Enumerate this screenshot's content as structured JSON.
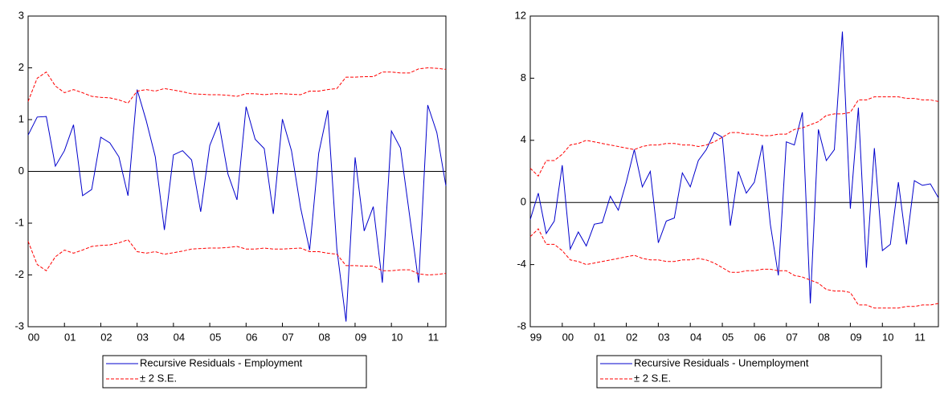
{
  "chart_data": [
    {
      "type": "line",
      "categories": [
        "00",
        null,
        null,
        null,
        "01",
        null,
        null,
        null,
        "02",
        null,
        null,
        null,
        "03",
        null,
        null,
        null,
        "04",
        null,
        null,
        null,
        "05",
        null,
        null,
        null,
        "06",
        null,
        null,
        null,
        "07",
        null,
        null,
        null,
        "08",
        null,
        null,
        null,
        "09",
        null,
        null,
        null,
        "10",
        null,
        null,
        null,
        "11",
        null,
        null
      ],
      "series": [
        {
          "name": "Recursive Residuals - Employment",
          "color": "#0000cc",
          "dash": false,
          "values": [
            0.7,
            1.05,
            1.06,
            0.1,
            0.4,
            0.9,
            -0.47,
            -0.35,
            0.66,
            0.55,
            0.28,
            -0.47,
            1.58,
            0.98,
            0.28,
            -1.13,
            0.32,
            0.4,
            0.22,
            -0.78,
            0.5,
            0.94,
            -0.05,
            -0.55,
            1.25,
            0.62,
            0.44,
            -0.82,
            1.01,
            0.4,
            -0.7,
            -1.52,
            0.35,
            1.18,
            -1.5,
            -2.9,
            0.27,
            -1.15,
            -0.68,
            -2.15,
            0.78,
            0.45,
            -0.85,
            -2.15,
            1.28,
            0.75,
            -0.28
          ]
        },
        {
          "name": "± 2 S.E.",
          "color": "#ff0000",
          "dash": true,
          "values": [
            1.35,
            1.8,
            1.92,
            1.65,
            1.52,
            1.58,
            1.52,
            1.45,
            1.43,
            1.42,
            1.38,
            1.32,
            1.55,
            1.58,
            1.55,
            1.6,
            1.57,
            1.54,
            1.5,
            1.49,
            1.48,
            1.48,
            1.47,
            1.45,
            1.5,
            1.5,
            1.48,
            1.5,
            1.5,
            1.49,
            1.48,
            1.55,
            1.55,
            1.58,
            1.6,
            1.82,
            1.82,
            1.83,
            1.83,
            1.92,
            1.92,
            1.9,
            1.9,
            1.98,
            2.0,
            1.99,
            1.97
          ],
          "lower": [
            -1.35,
            -1.8,
            -1.92,
            -1.65,
            -1.52,
            -1.58,
            -1.52,
            -1.45,
            -1.43,
            -1.42,
            -1.38,
            -1.32,
            -1.55,
            -1.58,
            -1.55,
            -1.6,
            -1.57,
            -1.54,
            -1.5,
            -1.49,
            -1.48,
            -1.48,
            -1.47,
            -1.45,
            -1.5,
            -1.5,
            -1.48,
            -1.5,
            -1.5,
            -1.49,
            -1.48,
            -1.55,
            -1.55,
            -1.58,
            -1.6,
            -1.82,
            -1.82,
            -1.83,
            -1.83,
            -1.92,
            -1.92,
            -1.9,
            -1.9,
            -1.98,
            -2.0,
            -1.99,
            -1.97
          ]
        }
      ],
      "ylim": [
        -3,
        3
      ],
      "yticks": [
        -3,
        -2,
        -1,
        0,
        1,
        2,
        3
      ]
    },
    {
      "type": "line",
      "categories": [
        "99",
        null,
        null,
        null,
        "00",
        null,
        null,
        null,
        "01",
        null,
        null,
        null,
        "02",
        null,
        null,
        null,
        "03",
        null,
        null,
        null,
        "04",
        null,
        null,
        null,
        "05",
        null,
        null,
        null,
        "06",
        null,
        null,
        null,
        "07",
        null,
        null,
        null,
        "08",
        null,
        null,
        null,
        "09",
        null,
        null,
        null,
        "10",
        null,
        null,
        null,
        "11",
        null,
        null,
        null
      ],
      "series": [
        {
          "name": "Recursive Residuals - Unemployment",
          "color": "#0000cc",
          "dash": false,
          "values": [
            -1.1,
            0.6,
            -2.0,
            -1.2,
            2.4,
            -3.0,
            -1.9,
            -2.8,
            -1.4,
            -1.3,
            0.4,
            -0.5,
            1.3,
            3.4,
            1.0,
            2.0,
            -2.6,
            -1.2,
            -1.0,
            1.9,
            1.0,
            2.7,
            3.4,
            4.5,
            4.2,
            -1.5,
            2.0,
            0.6,
            1.3,
            3.7,
            -1.4,
            -4.7,
            3.9,
            3.7,
            5.8,
            -6.5,
            4.7,
            2.7,
            3.4,
            11.0,
            -0.4,
            6.1,
            -4.2,
            3.5,
            -3.1,
            -2.7,
            1.3,
            -2.7,
            1.4,
            1.1,
            1.2,
            0.3
          ]
        },
        {
          "name": "± 2 S.E.",
          "color": "#ff0000",
          "dash": true,
          "values": [
            2.2,
            1.7,
            2.7,
            2.7,
            3.1,
            3.7,
            3.8,
            4.0,
            3.9,
            3.8,
            3.7,
            3.6,
            3.5,
            3.4,
            3.6,
            3.7,
            3.7,
            3.8,
            3.8,
            3.7,
            3.7,
            3.6,
            3.7,
            3.9,
            4.2,
            4.5,
            4.5,
            4.4,
            4.4,
            4.3,
            4.3,
            4.4,
            4.4,
            4.7,
            4.8,
            5.0,
            5.2,
            5.6,
            5.7,
            5.7,
            5.8,
            6.6,
            6.6,
            6.8,
            6.8,
            6.8,
            6.8,
            6.7,
            6.7,
            6.6,
            6.6,
            6.5
          ],
          "lower": [
            -2.2,
            -1.7,
            -2.7,
            -2.7,
            -3.1,
            -3.7,
            -3.8,
            -4.0,
            -3.9,
            -3.8,
            -3.7,
            -3.6,
            -3.5,
            -3.4,
            -3.6,
            -3.7,
            -3.7,
            -3.8,
            -3.8,
            -3.7,
            -3.7,
            -3.6,
            -3.7,
            -3.9,
            -4.2,
            -4.5,
            -4.5,
            -4.4,
            -4.4,
            -4.3,
            -4.3,
            -4.4,
            -4.4,
            -4.7,
            -4.8,
            -5.0,
            -5.2,
            -5.6,
            -5.7,
            -5.7,
            -5.8,
            -6.6,
            -6.6,
            -6.8,
            -6.8,
            -6.8,
            -6.8,
            -6.7,
            -6.7,
            -6.6,
            -6.6,
            -6.5
          ]
        }
      ],
      "ylim": [
        -8,
        12
      ],
      "yticks": [
        -8,
        -4,
        0,
        4,
        8,
        12
      ]
    }
  ]
}
